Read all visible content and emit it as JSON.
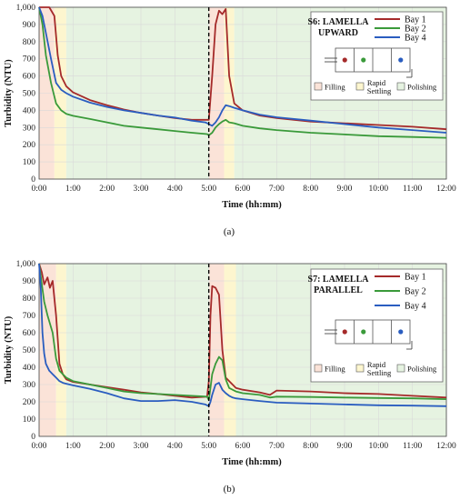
{
  "chart_data": [
    {
      "type": "line",
      "subcaption": "(a)",
      "xlabel": "Time (hh:mm)",
      "ylabel": "Turbidity (NTU)",
      "xlim": [
        0,
        12
      ],
      "ylim": [
        0,
        1000
      ],
      "xticks": [
        "0:00",
        "1:00",
        "2:00",
        "3:00",
        "4:00",
        "5:00",
        "6:00",
        "7:00",
        "8:00",
        "9:00",
        "10:00",
        "11:00",
        "12:00"
      ],
      "yticks": [
        "0",
        "100",
        "200",
        "300",
        "400",
        "500",
        "600",
        "700",
        "800",
        "900",
        "1,000"
      ],
      "legend": {
        "title_lines": [
          "S6: LAMELLA",
          "UPWARD"
        ],
        "placement": "top-right"
      },
      "phase_legend": [
        "Filling",
        "Rapid",
        "Settling",
        "Polishing"
      ],
      "phases": [
        {
          "phase": "filling",
          "color": "#fbe3d8",
          "ranges": [
            [
              0,
              0.45
            ],
            [
              5,
              5.45
            ]
          ]
        },
        {
          "phase": "rapid-settling",
          "color": "#fdf6cf",
          "ranges": [
            [
              0.45,
              0.8
            ],
            [
              5.45,
              5.75
            ]
          ]
        },
        {
          "phase": "polishing",
          "color": "#e6f3e1",
          "ranges": [
            [
              0.8,
              5
            ],
            [
              5.75,
              12
            ]
          ]
        }
      ],
      "marker_time": 5,
      "bay_marker_colors": [
        "#a52a2a",
        "#3a9a3a",
        "#2a5dc0"
      ],
      "series": [
        {
          "name": "Bay 1",
          "color": "#a52a2a",
          "x": [
            0,
            0.3,
            0.45,
            0.55,
            0.65,
            0.8,
            1,
            1.5,
            2,
            2.5,
            3,
            3.5,
            4,
            4.5,
            4.9,
            5,
            5.1,
            5.2,
            5.3,
            5.4,
            5.5,
            5.6,
            5.75,
            6,
            6.5,
            7,
            8,
            9,
            10,
            11,
            12
          ],
          "y": [
            1000,
            1000,
            950,
            720,
            600,
            540,
            505,
            460,
            430,
            405,
            385,
            370,
            355,
            345,
            345,
            345,
            600,
            900,
            980,
            960,
            990,
            600,
            440,
            400,
            370,
            355,
            335,
            325,
            315,
            305,
            290
          ]
        },
        {
          "name": "Bay 2",
          "color": "#3a9a3a",
          "x": [
            0,
            0.1,
            0.2,
            0.35,
            0.5,
            0.65,
            0.8,
            1,
            1.5,
            2,
            2.5,
            3,
            3.5,
            4,
            4.5,
            4.95,
            5,
            5.1,
            5.2,
            5.3,
            5.4,
            5.5,
            5.6,
            5.75,
            6,
            6.5,
            7,
            8,
            9,
            10,
            11,
            12
          ],
          "y": [
            1000,
            900,
            720,
            560,
            440,
            400,
            380,
            368,
            350,
            330,
            310,
            300,
            290,
            280,
            270,
            262,
            255,
            270,
            300,
            320,
            335,
            345,
            330,
            325,
            310,
            295,
            285,
            270,
            260,
            250,
            245,
            240
          ]
        },
        {
          "name": "Bay 4",
          "color": "#2a5dc0",
          "x": [
            0,
            0.1,
            0.2,
            0.35,
            0.5,
            0.65,
            0.8,
            1,
            1.5,
            2,
            2.5,
            3,
            3.5,
            4,
            4.5,
            4.9,
            5,
            5.1,
            5.2,
            5.3,
            5.4,
            5.5,
            5.6,
            5.75,
            6,
            6.5,
            7,
            8,
            9,
            10,
            11,
            12
          ],
          "y": [
            1000,
            950,
            850,
            700,
            560,
            520,
            500,
            480,
            445,
            420,
            400,
            385,
            370,
            358,
            340,
            330,
            320,
            310,
            330,
            360,
            400,
            430,
            425,
            415,
            400,
            375,
            360,
            340,
            320,
            300,
            285,
            270
          ]
        }
      ]
    },
    {
      "type": "line",
      "subcaption": "(b)",
      "xlabel": "Time (hh:mm)",
      "ylabel": "Turbidity (NTU)",
      "xlim": [
        0,
        12
      ],
      "ylim": [
        0,
        1000
      ],
      "xticks": [
        "0:00",
        "1:00",
        "2:00",
        "3:00",
        "4:00",
        "5:00",
        "6:00",
        "7:00",
        "8:00",
        "9:00",
        "10:00",
        "11:00",
        "12:00"
      ],
      "yticks": [
        "0",
        "100",
        "200",
        "300",
        "400",
        "500",
        "600",
        "700",
        "800",
        "900",
        "1,000"
      ],
      "legend": {
        "title_lines": [
          "S7: LAMELLA",
          "PARALLEL"
        ],
        "placement": "top-right"
      },
      "phase_legend": [
        "Filling",
        "Rapid",
        "Settling",
        "Polishing"
      ],
      "phases": [
        {
          "phase": "filling",
          "color": "#fbe3d8",
          "ranges": [
            [
              0,
              0.5
            ],
            [
              5,
              5.45
            ]
          ]
        },
        {
          "phase": "rapid-settling",
          "color": "#fdf6cf",
          "ranges": [
            [
              0.5,
              0.8
            ],
            [
              5.45,
              5.8
            ]
          ]
        },
        {
          "phase": "polishing",
          "color": "#e6f3e1",
          "ranges": [
            [
              0.8,
              5
            ],
            [
              5.8,
              12
            ]
          ]
        }
      ],
      "marker_time": 5,
      "bay_marker_colors": [
        "#a52a2a",
        "#3a9a3a",
        "#2a5dc0"
      ],
      "series": [
        {
          "name": "Bay 1",
          "color": "#a52a2a",
          "x": [
            0,
            0.08,
            0.15,
            0.25,
            0.32,
            0.4,
            0.5,
            0.6,
            0.7,
            0.8,
            1,
            1.5,
            2,
            2.5,
            3,
            3.5,
            4,
            4.5,
            4.95,
            5,
            5.05,
            5.1,
            5.2,
            5.3,
            5.4,
            5.5,
            5.6,
            5.7,
            5.8,
            6,
            6.5,
            6.8,
            7,
            8,
            9,
            10,
            11,
            12
          ],
          "y": [
            1000,
            950,
            880,
            920,
            860,
            900,
            700,
            420,
            360,
            330,
            315,
            300,
            285,
            270,
            255,
            245,
            235,
            225,
            230,
            320,
            700,
            870,
            860,
            820,
            500,
            340,
            320,
            300,
            280,
            270,
            255,
            240,
            265,
            260,
            250,
            245,
            235,
            225
          ]
        },
        {
          "name": "Bay 2",
          "color": "#3a9a3a",
          "x": [
            0,
            0.08,
            0.15,
            0.25,
            0.4,
            0.5,
            0.6,
            0.7,
            0.8,
            1,
            1.5,
            2,
            2.5,
            3,
            3.5,
            4,
            4.5,
            4.95,
            5,
            5.05,
            5.1,
            5.2,
            5.3,
            5.4,
            5.5,
            5.6,
            5.7,
            5.8,
            6,
            6.5,
            6.8,
            7,
            8,
            9,
            10,
            11,
            12
          ],
          "y": [
            1000,
            880,
            780,
            700,
            600,
            450,
            380,
            360,
            340,
            320,
            300,
            280,
            260,
            250,
            245,
            240,
            235,
            230,
            210,
            280,
            360,
            420,
            460,
            440,
            330,
            280,
            270,
            260,
            250,
            240,
            225,
            230,
            228,
            225,
            222,
            220,
            215
          ]
        },
        {
          "name": "Bay 4",
          "color": "#2a5dc0",
          "x": [
            0,
            0.05,
            0.1,
            0.15,
            0.2,
            0.3,
            0.4,
            0.5,
            0.6,
            0.7,
            0.8,
            1,
            1.5,
            2,
            2.5,
            3,
            3.5,
            4,
            4.5,
            4.9,
            5,
            5.05,
            5.1,
            5.2,
            5.3,
            5.4,
            5.5,
            5.6,
            5.7,
            5.8,
            6,
            6.5,
            7,
            8,
            9,
            10,
            11,
            12
          ],
          "y": [
            1000,
            850,
            600,
            480,
            420,
            380,
            360,
            340,
            320,
            310,
            305,
            295,
            275,
            250,
            220,
            205,
            205,
            210,
            200,
            185,
            175,
            200,
            240,
            300,
            310,
            270,
            250,
            235,
            225,
            220,
            215,
            205,
            195,
            190,
            185,
            180,
            178,
            175
          ]
        }
      ]
    }
  ]
}
